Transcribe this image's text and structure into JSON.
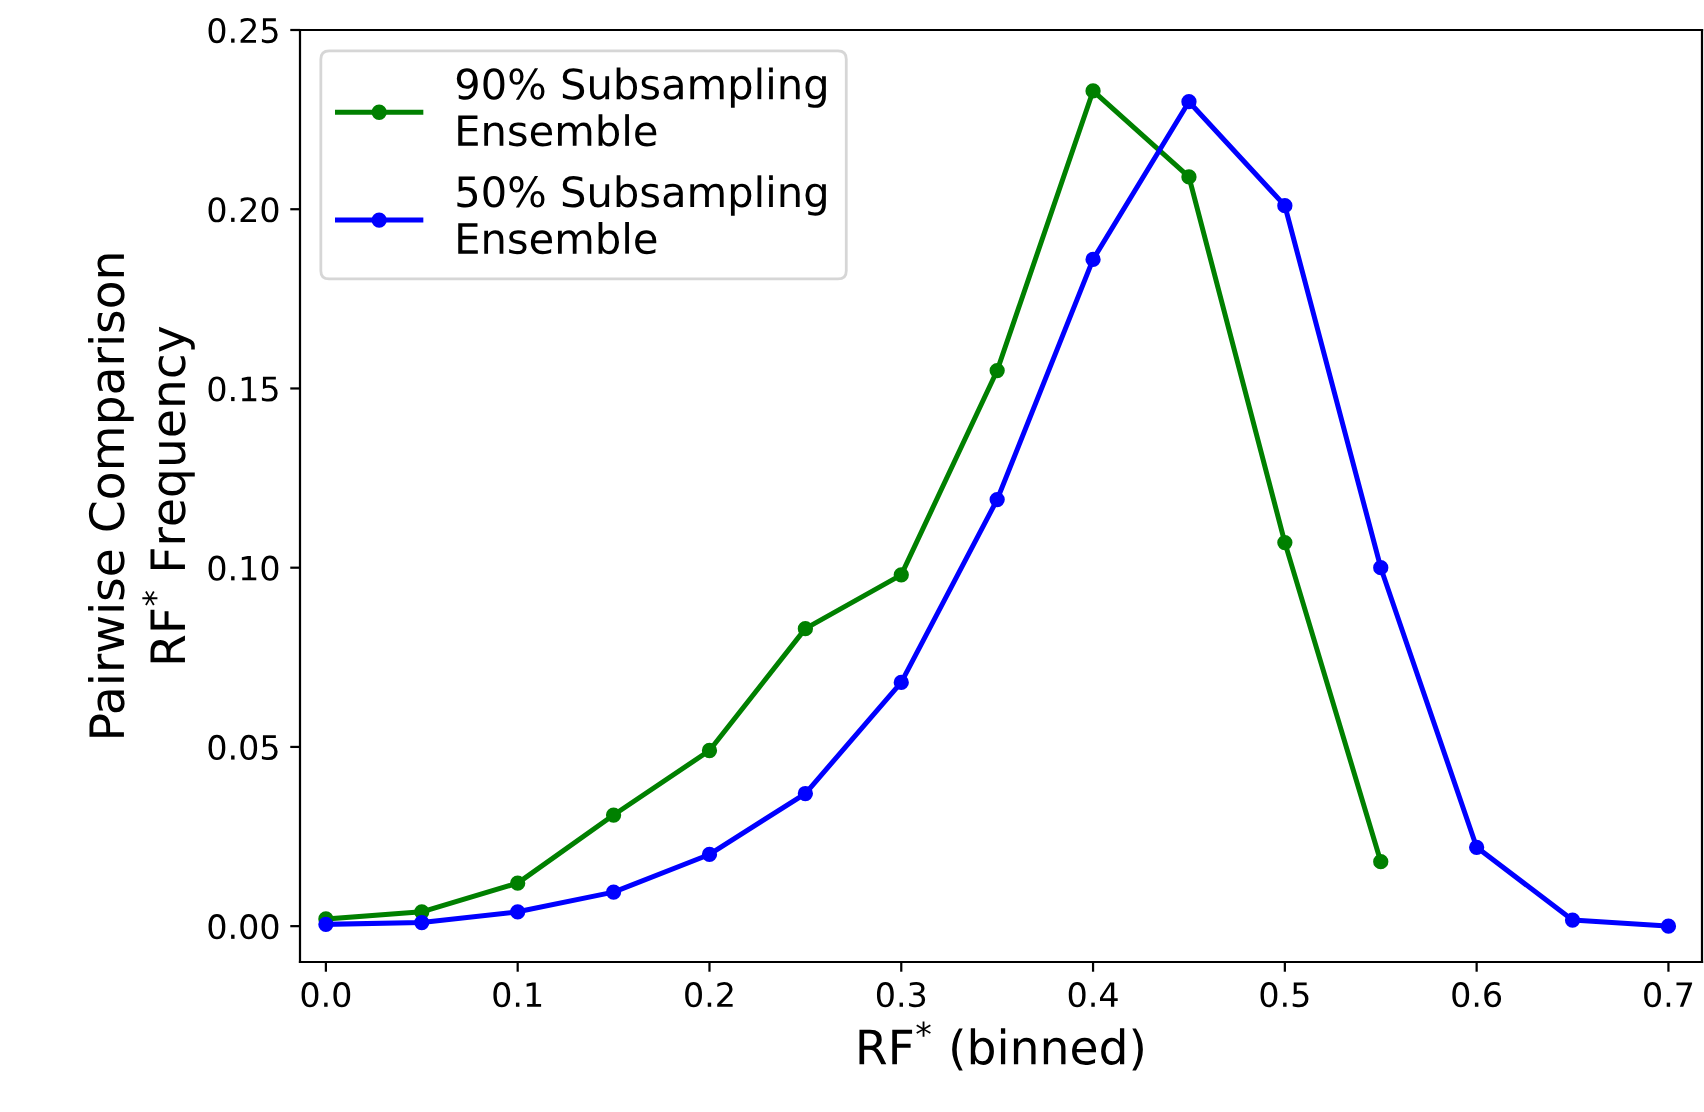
{
  "chart_data": {
    "type": "line",
    "xlabel": "RF$^{*}$ (binned)",
    "ylabel": "Pairwise Comparison\nRF$^{*}$ Frequency",
    "series": [
      {
        "name": "90% Subsampling\nEnsemble",
        "color": "#008000",
        "x": [
          0.0,
          0.05,
          0.1,
          0.15,
          0.2,
          0.25,
          0.3,
          0.35,
          0.4,
          0.45,
          0.5,
          0.55
        ],
        "values": [
          0.002,
          0.004,
          0.012,
          0.031,
          0.049,
          0.083,
          0.098,
          0.155,
          0.233,
          0.209,
          0.107,
          0.018
        ]
      },
      {
        "name": "50% Subsampling\nEnsemble",
        "color": "#0000ff",
        "x": [
          0.0,
          0.05,
          0.1,
          0.15,
          0.2,
          0.25,
          0.3,
          0.35,
          0.4,
          0.45,
          0.5,
          0.55,
          0.6,
          0.65,
          0.7
        ],
        "values": [
          0.0005,
          0.001,
          0.004,
          0.0095,
          0.02,
          0.037,
          0.068,
          0.119,
          0.186,
          0.23,
          0.201,
          0.1,
          0.022,
          0.0017,
          0.0
        ]
      }
    ],
    "xlim": [
      -0.0135,
      0.7175
    ],
    "ylim": [
      -0.01,
      0.25
    ],
    "xticks": [
      {
        "value": 0,
        "label": "0.0"
      },
      0.1,
      0.2,
      0.3,
      0.4,
      0.5,
      0.6,
      0.7
    ],
    "yticks": [
      {
        "value": 0,
        "label": "0.00"
      },
      0.05,
      {
        "value": 0.1,
        "label": "0.10"
      },
      0.15,
      {
        "value": 0.2,
        "label": "0.20"
      },
      0.25
    ],
    "marker": "circle",
    "line_style": "solid",
    "grid": false,
    "legend": "top left"
  }
}
